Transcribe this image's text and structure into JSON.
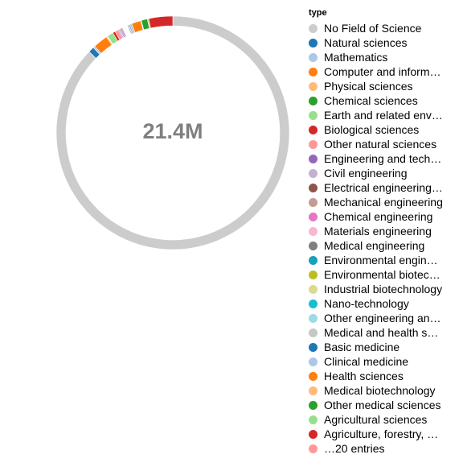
{
  "chart_data": {
    "type": "pie",
    "donut": true,
    "center_label": "21.4M",
    "legend_title": "type",
    "legend_position": "right",
    "slices": [
      {
        "label": "No Field of Science",
        "value": 18380000,
        "color": "#cccccc"
      },
      {
        "label": "Natural sciences",
        "value": 170000,
        "color": "#1f77b4"
      },
      {
        "label": "Mathematics",
        "value": 55000,
        "color": "#aec7e8"
      },
      {
        "label": "Computer and inform…",
        "value": 430000,
        "color": "#ff7f0e"
      },
      {
        "label": "Physical sciences",
        "value": 30000,
        "color": "#ffbb78"
      },
      {
        "label": "Chemical sciences",
        "value": 8000,
        "color": "#2ca02c"
      },
      {
        "label": "Earth and related env…",
        "value": 180000,
        "color": "#98df8a"
      },
      {
        "label": "Biological sciences",
        "value": 75000,
        "color": "#d62728"
      },
      {
        "label": "Other natural sciences",
        "value": 110000,
        "color": "#ff9896"
      },
      {
        "label": "Engineering and tech…",
        "value": 30000,
        "color": "#9467bd"
      },
      {
        "label": "Civil engineering",
        "value": 100000,
        "color": "#c5b0d5"
      },
      {
        "label": "Electrical engineering…",
        "value": 15000,
        "color": "#8c564b"
      },
      {
        "label": "Mechanical engineering",
        "value": 15000,
        "color": "#c49c94"
      },
      {
        "label": "Chemical engineering",
        "value": 15000,
        "color": "#e377c2"
      },
      {
        "label": "Materials engineering",
        "value": 15000,
        "color": "#f7b6d2"
      },
      {
        "label": "Medical engineering",
        "value": 15000,
        "color": "#7f7f7f"
      },
      {
        "label": "Environmental engin…",
        "value": 15000,
        "color": "#17a2b8"
      },
      {
        "label": "Environmental biotec…",
        "value": 15000,
        "color": "#bcbd22"
      },
      {
        "label": "Industrial biotechnology",
        "value": 15000,
        "color": "#dbdb8d"
      },
      {
        "label": "Nano-technology",
        "value": 15000,
        "color": "#17becf"
      },
      {
        "label": "Other engineering an…",
        "value": 15000,
        "color": "#9edae5"
      },
      {
        "label": "Medical and health s…",
        "value": 50000,
        "color": "#c7c7c7"
      },
      {
        "label": "Basic medicine",
        "value": 30000,
        "color": "#1f77b4"
      },
      {
        "label": "Clinical medicine",
        "value": 60000,
        "color": "#aec7e8"
      },
      {
        "label": "Health sciences",
        "value": 270000,
        "color": "#ff7f0e"
      },
      {
        "label": "Medical biotechnology",
        "value": 20000,
        "color": "#ffbb78"
      },
      {
        "label": "Other medical sciences",
        "value": 180000,
        "color": "#2ca02c"
      },
      {
        "label": "Agricultural sciences",
        "value": 40000,
        "color": "#98df8a"
      },
      {
        "label": "Agriculture, forestry, …",
        "value": 700000,
        "color": "#d62728"
      },
      {
        "label": "…20 entries",
        "value": 0,
        "color": "#ff9896"
      }
    ]
  }
}
